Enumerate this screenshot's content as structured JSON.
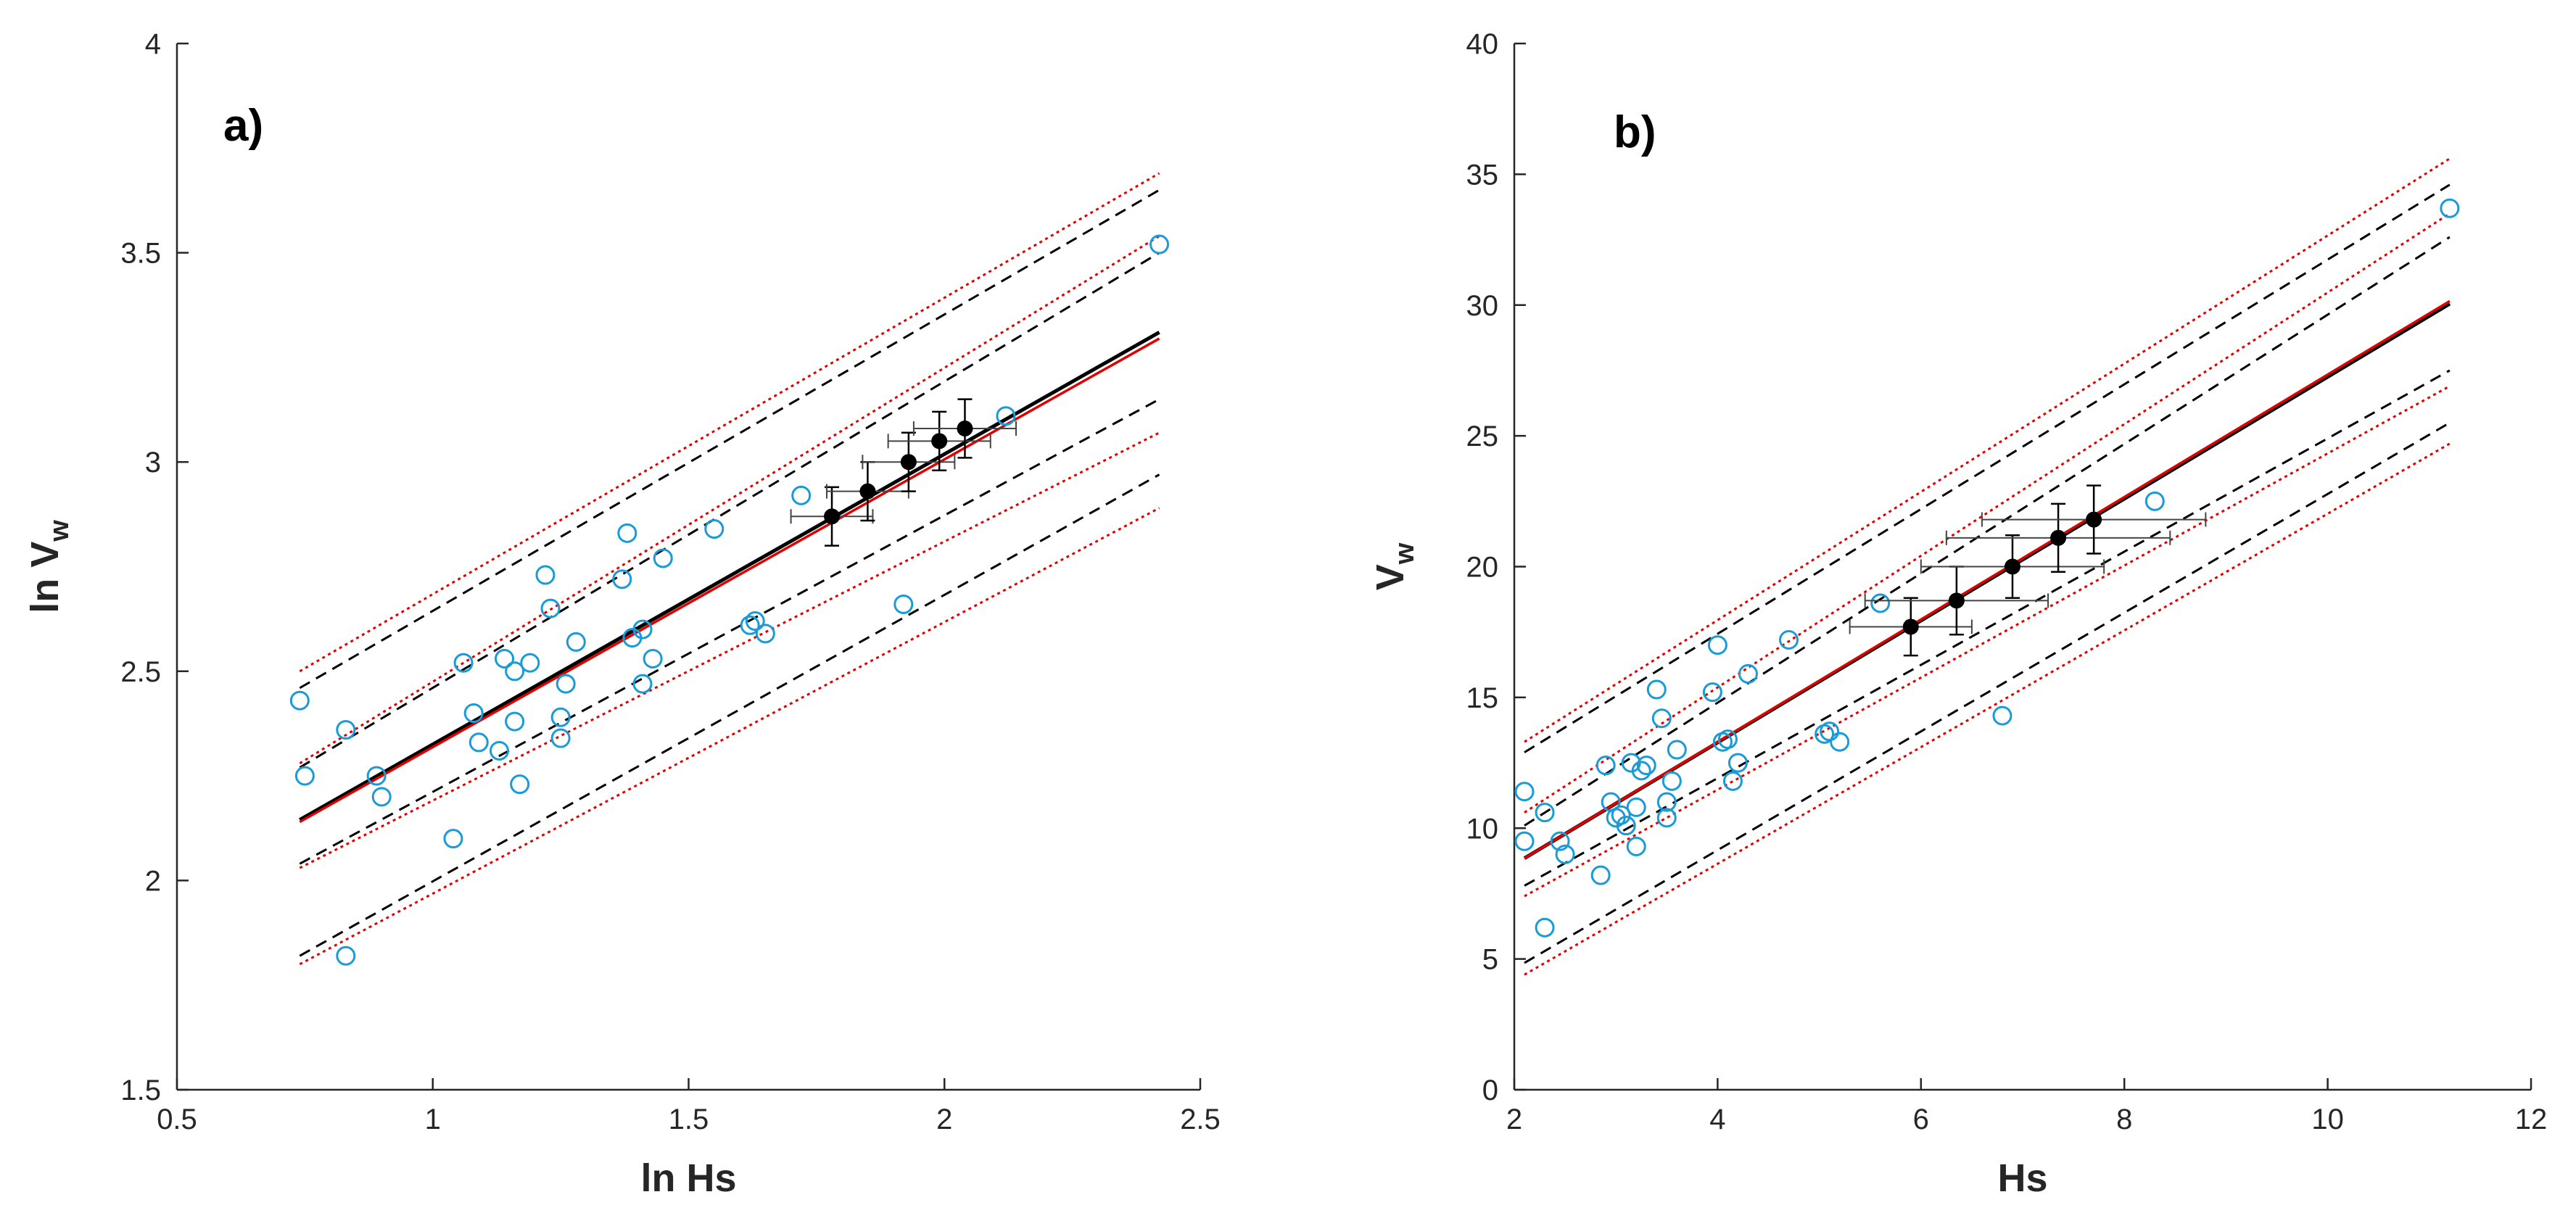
{
  "colors": {
    "observations": "#1a9bd7",
    "fit_black": "#000000",
    "fit_red": "#e00000",
    "axis": "#262626"
  },
  "chart_data": [
    {
      "type": "scatter",
      "panel_label": "a)",
      "xlabel": "ln Hs",
      "ylabel_main": "ln V",
      "ylabel_sub": "w",
      "xlim": [
        0.5,
        2.5
      ],
      "ylim": [
        1.5,
        4
      ],
      "xticks": [
        0.5,
        1,
        1.5,
        2,
        2.5
      ],
      "xtick_labels": [
        "0.5",
        "1",
        "1.5",
        "2",
        "2.5"
      ],
      "yticks": [
        1.5,
        2,
        2.5,
        3,
        3.5,
        4
      ],
      "ytick_labels": [
        "1.5",
        "2",
        "2.5",
        "3",
        "3.5",
        "4"
      ],
      "observations": [
        [
          0.74,
          2.43
        ],
        [
          0.75,
          2.25
        ],
        [
          0.83,
          2.36
        ],
        [
          0.83,
          1.82
        ],
        [
          0.89,
          2.25
        ],
        [
          0.9,
          2.2
        ],
        [
          1.04,
          2.1
        ],
        [
          1.06,
          2.52
        ],
        [
          1.08,
          2.4
        ],
        [
          1.09,
          2.33
        ],
        [
          1.13,
          2.31
        ],
        [
          1.14,
          2.53
        ],
        [
          1.16,
          2.5
        ],
        [
          1.16,
          2.38
        ],
        [
          1.17,
          2.23
        ],
        [
          1.19,
          2.52
        ],
        [
          1.22,
          2.73
        ],
        [
          1.23,
          2.65
        ],
        [
          1.25,
          2.34
        ],
        [
          1.25,
          2.39
        ],
        [
          1.26,
          2.47
        ],
        [
          1.28,
          2.57
        ],
        [
          1.37,
          2.72
        ],
        [
          1.38,
          2.83
        ],
        [
          1.39,
          2.58
        ],
        [
          1.41,
          2.6
        ],
        [
          1.41,
          2.47
        ],
        [
          1.43,
          2.53
        ],
        [
          1.45,
          2.77
        ],
        [
          1.55,
          2.84
        ],
        [
          1.62,
          2.61
        ],
        [
          1.63,
          2.62
        ],
        [
          1.65,
          2.59
        ],
        [
          1.72,
          2.92
        ],
        [
          1.92,
          2.66
        ],
        [
          2.12,
          3.11
        ],
        [
          2.42,
          3.52
        ]
      ],
      "mean_points": [
        {
          "x": 1.78,
          "y": 2.87,
          "xerr": 0.08,
          "yerr": 0.07
        },
        {
          "x": 1.85,
          "y": 2.93,
          "xerr": 0.08,
          "yerr": 0.07
        },
        {
          "x": 1.93,
          "y": 3.0,
          "xerr": 0.09,
          "yerr": 0.07
        },
        {
          "x": 1.99,
          "y": 3.05,
          "xerr": 0.1,
          "yerr": 0.07
        },
        {
          "x": 2.04,
          "y": 3.08,
          "xerr": 0.1,
          "yerr": 0.07
        }
      ],
      "fit_lines": [
        {
          "name": "fit (black)",
          "style": "solid",
          "color": "#000000",
          "width": 5,
          "x": [
            0.74,
            2.42
          ],
          "y": [
            2.145,
            3.31
          ]
        },
        {
          "name": "fit (red)",
          "style": "solid",
          "color": "#e00000",
          "width": 3.5,
          "x": [
            0.74,
            2.42
          ],
          "y": [
            2.14,
            3.295
          ]
        },
        {
          "name": "upper prediction bound",
          "style": "dashed",
          "color": "#000000",
          "width": 3,
          "x": [
            0.74,
            2.42
          ],
          "y": [
            2.46,
            3.65
          ]
        },
        {
          "name": "lower prediction bound",
          "style": "dashed",
          "color": "#000000",
          "width": 3,
          "x": [
            0.74,
            2.42
          ],
          "y": [
            1.82,
            2.97
          ]
        },
        {
          "name": "upper confidence bound",
          "style": "dashed",
          "color": "#000000",
          "width": 3,
          "x": [
            0.74,
            2.42
          ],
          "y": [
            2.27,
            3.5
          ]
        },
        {
          "name": "lower confidence bound",
          "style": "dashed",
          "color": "#000000",
          "width": 3,
          "x": [
            0.74,
            2.42
          ],
          "y": [
            2.04,
            3.15
          ]
        },
        {
          "name": "upper prediction bound (red)",
          "style": "dotted",
          "color": "#e00000",
          "width": 3,
          "x": [
            0.74,
            2.42
          ],
          "y": [
            2.5,
            3.69
          ]
        },
        {
          "name": "lower prediction bound (red)",
          "style": "dotted",
          "color": "#e00000",
          "width": 3,
          "x": [
            0.74,
            2.42
          ],
          "y": [
            1.8,
            2.89
          ]
        },
        {
          "name": "upper confidence bound (red)",
          "style": "dotted",
          "color": "#e00000",
          "width": 3,
          "x": [
            0.74,
            2.42
          ],
          "y": [
            2.28,
            3.54
          ]
        },
        {
          "name": "lower confidence bound (red)",
          "style": "dotted",
          "color": "#e00000",
          "width": 3,
          "x": [
            0.74,
            2.42
          ],
          "y": [
            2.03,
            3.07
          ]
        }
      ]
    },
    {
      "type": "scatter",
      "panel_label": "b)",
      "xlabel": "Hs",
      "ylabel_main": "V",
      "ylabel_sub": "w",
      "xlim": [
        2,
        12
      ],
      "ylim": [
        0,
        40
      ],
      "xticks": [
        2,
        4,
        6,
        8,
        10,
        12
      ],
      "xtick_labels": [
        "2",
        "4",
        "6",
        "8",
        "10",
        "12"
      ],
      "yticks": [
        0,
        5,
        10,
        15,
        20,
        25,
        30,
        35,
        40
      ],
      "ytick_labels": [
        "0",
        "5",
        "10",
        "15",
        "20",
        "25",
        "30",
        "35",
        "40"
      ],
      "observations": [
        [
          2.1,
          11.4
        ],
        [
          2.1,
          9.5
        ],
        [
          2.3,
          10.6
        ],
        [
          2.3,
          6.2
        ],
        [
          2.45,
          9.5
        ],
        [
          2.5,
          9.0
        ],
        [
          2.85,
          8.2
        ],
        [
          2.9,
          12.4
        ],
        [
          2.95,
          11.0
        ],
        [
          3.0,
          10.4
        ],
        [
          3.05,
          10.5
        ],
        [
          3.1,
          10.1
        ],
        [
          3.15,
          12.5
        ],
        [
          3.2,
          10.8
        ],
        [
          3.2,
          9.3
        ],
        [
          3.25,
          12.2
        ],
        [
          3.3,
          12.4
        ],
        [
          3.4,
          15.3
        ],
        [
          3.45,
          14.2
        ],
        [
          3.5,
          10.4
        ],
        [
          3.5,
          11.0
        ],
        [
          3.55,
          11.8
        ],
        [
          3.6,
          13.0
        ],
        [
          3.95,
          15.2
        ],
        [
          4.0,
          17.0
        ],
        [
          4.05,
          13.3
        ],
        [
          4.1,
          13.4
        ],
        [
          4.15,
          11.8
        ],
        [
          4.2,
          12.5
        ],
        [
          4.3,
          15.9
        ],
        [
          4.7,
          17.2
        ],
        [
          5.05,
          13.6
        ],
        [
          5.1,
          13.7
        ],
        [
          5.2,
          13.3
        ],
        [
          5.6,
          18.6
        ],
        [
          6.8,
          14.3
        ],
        [
          8.3,
          22.5
        ],
        [
          11.2,
          33.7
        ]
      ],
      "mean_points": [
        {
          "x": 5.9,
          "y": 17.7,
          "xerr": 0.6,
          "yerr": 1.1
        },
        {
          "x": 6.35,
          "y": 18.7,
          "xerr": 0.9,
          "yerr": 1.3
        },
        {
          "x": 6.9,
          "y": 20.0,
          "xerr": 0.9,
          "yerr": 1.2
        },
        {
          "x": 7.35,
          "y": 21.1,
          "xerr": 1.1,
          "yerr": 1.3
        },
        {
          "x": 7.7,
          "y": 21.8,
          "xerr": 1.1,
          "yerr": 1.3
        }
      ],
      "fit_lines": [
        {
          "name": "fit (black)",
          "style": "solid",
          "color": "#000000",
          "width": 5,
          "x": [
            2.1,
            11.2
          ],
          "y": [
            8.85,
            30.05
          ]
        },
        {
          "name": "fit (red)",
          "style": "solid",
          "color": "#e00000",
          "width": 3.5,
          "x": [
            2.1,
            11.2
          ],
          "y": [
            8.85,
            30.15
          ]
        },
        {
          "name": "upper prediction bound",
          "style": "dashed",
          "color": "#000000",
          "width": 3,
          "x": [
            2.1,
            11.2
          ],
          "y": [
            12.9,
            34.6
          ]
        },
        {
          "name": "lower prediction bound",
          "style": "dashed",
          "color": "#000000",
          "width": 3,
          "x": [
            2.1,
            11.2
          ],
          "y": [
            4.85,
            25.5
          ]
        },
        {
          "name": "upper confidence bound",
          "style": "dashed",
          "color": "#000000",
          "width": 3,
          "x": [
            2.1,
            11.2
          ],
          "y": [
            10.1,
            32.6
          ]
        },
        {
          "name": "lower confidence bound",
          "style": "dashed",
          "color": "#000000",
          "width": 3,
          "x": [
            2.1,
            11.2
          ],
          "y": [
            7.8,
            27.5
          ]
        },
        {
          "name": "upper prediction bound (red)",
          "style": "dotted",
          "color": "#e00000",
          "width": 3,
          "x": [
            2.1,
            11.2
          ],
          "y": [
            13.3,
            35.6
          ]
        },
        {
          "name": "lower prediction bound (red)",
          "style": "dotted",
          "color": "#e00000",
          "width": 3,
          "x": [
            2.1,
            11.2
          ],
          "y": [
            4.4,
            24.7
          ]
        },
        {
          "name": "upper confidence bound (red)",
          "style": "dotted",
          "color": "#e00000",
          "width": 3,
          "x": [
            2.1,
            11.2
          ],
          "y": [
            10.6,
            33.5
          ]
        },
        {
          "name": "lower confidence bound (red)",
          "style": "dotted",
          "color": "#e00000",
          "width": 3,
          "x": [
            2.1,
            11.2
          ],
          "y": [
            7.4,
            26.9
          ]
        }
      ]
    }
  ]
}
